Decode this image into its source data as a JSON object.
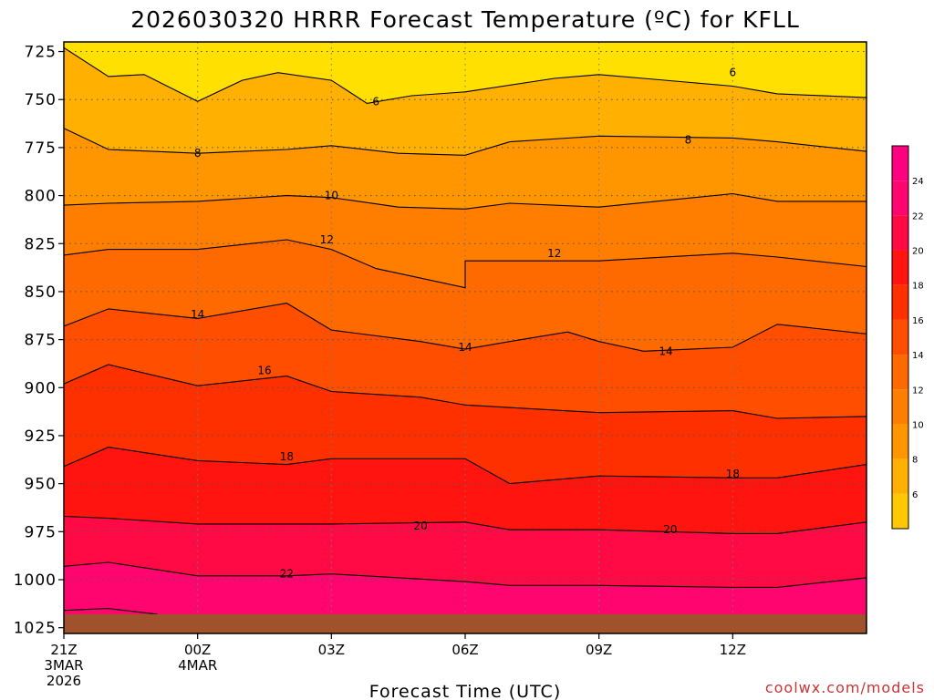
{
  "chart_data": {
    "type": "contour",
    "title": "2026030320 HRRR Forecast Temperature (ºC) for KFLL",
    "xlabel": "Forecast Time (UTC)",
    "ylabel": "",
    "credit": "coolwx.com/models",
    "xlim": [
      0,
      18
    ],
    "ylim": [
      1028,
      720
    ],
    "y_ticks": [
      725,
      750,
      775,
      800,
      825,
      850,
      875,
      900,
      925,
      950,
      975,
      1000,
      1025
    ],
    "x_ticks": [
      {
        "hour": 0,
        "line1": "21Z",
        "line2": "3MAR",
        "line3": "2026"
      },
      {
        "hour": 3,
        "line1": "00Z",
        "line2": "4MAR",
        "line3": ""
      },
      {
        "hour": 6,
        "line1": "03Z",
        "line2": "",
        "line3": ""
      },
      {
        "hour": 9,
        "line1": "06Z",
        "line2": "",
        "line3": ""
      },
      {
        "hour": 12,
        "line1": "09Z",
        "line2": "",
        "line3": ""
      },
      {
        "hour": 15,
        "line1": "12Z",
        "line2": "",
        "line3": ""
      }
    ],
    "surface_pressure_hpa": 1018,
    "fill_levels": [
      4,
      6,
      8,
      10,
      12,
      14,
      16,
      18,
      20,
      22,
      24,
      26
    ],
    "fill_colors": [
      "#ffe000",
      "#ffc800",
      "#ffb000",
      "#ff9600",
      "#ff7e00",
      "#ff6a00",
      "#ff4e00",
      "#ff3000",
      "#ff1410",
      "#ff0a45",
      "#ff0570",
      "#ff0080"
    ],
    "colorbar_labels": [
      "6",
      "8",
      "10",
      "12",
      "14",
      "16",
      "18",
      "20",
      "22",
      "24"
    ],
    "isotherms": [
      {
        "temp": 6,
        "points": [
          [
            0,
            723
          ],
          [
            1,
            738
          ],
          [
            1.8,
            737
          ],
          [
            3,
            751
          ],
          [
            4,
            740
          ],
          [
            4.8,
            736
          ],
          [
            6,
            740
          ],
          [
            6.8,
            752
          ],
          [
            7.8,
            748
          ],
          [
            9,
            746
          ],
          [
            11,
            739
          ],
          [
            12,
            737
          ],
          [
            13,
            739
          ],
          [
            15,
            743
          ],
          [
            16,
            747
          ],
          [
            18,
            749
          ]
        ],
        "labels": [
          [
            7.0,
            751
          ],
          [
            15,
            736
          ]
        ]
      },
      {
        "temp": 6,
        "points": [
          [
            0,
            1016
          ],
          [
            1,
            1015
          ],
          [
            2.1,
            1018
          ]
        ],
        "labels": []
      },
      {
        "temp": 8,
        "points": [
          [
            0,
            765
          ],
          [
            1,
            776
          ],
          [
            3,
            778
          ],
          [
            5,
            776
          ],
          [
            6,
            774
          ],
          [
            7.5,
            778
          ],
          [
            9,
            779
          ],
          [
            10,
            772
          ],
          [
            12,
            769
          ],
          [
            15,
            770
          ],
          [
            16,
            772
          ],
          [
            18,
            777
          ]
        ],
        "labels": [
          [
            3,
            778
          ],
          [
            14,
            771
          ]
        ]
      },
      {
        "temp": 8,
        "points": [],
        "labels": []
      },
      {
        "temp": 10,
        "points": [
          [
            0,
            805
          ],
          [
            1,
            804
          ],
          [
            3,
            803
          ],
          [
            5,
            800
          ],
          [
            6,
            801
          ],
          [
            7.5,
            806
          ],
          [
            9,
            807
          ],
          [
            10,
            804
          ],
          [
            12,
            806
          ],
          [
            15,
            799
          ],
          [
            16,
            803
          ],
          [
            18,
            803
          ]
        ],
        "labels": [
          [
            6,
            800
          ]
        ]
      },
      {
        "temp": 12,
        "points": [
          [
            0,
            831
          ],
          [
            1,
            828
          ],
          [
            3,
            828
          ],
          [
            5,
            823
          ],
          [
            6,
            828
          ],
          [
            7,
            838
          ],
          [
            9,
            848
          ],
          [
            9,
            834
          ],
          [
            12,
            834
          ],
          [
            15,
            830
          ],
          [
            16,
            832
          ],
          [
            18,
            837
          ]
        ],
        "labels": [
          [
            5.9,
            823
          ],
          [
            11,
            830
          ]
        ]
      },
      {
        "temp": 14,
        "points": [
          [
            0,
            868
          ],
          [
            1,
            859
          ],
          [
            3,
            864
          ],
          [
            5,
            856
          ],
          [
            6,
            870
          ],
          [
            8,
            876
          ],
          [
            9,
            880
          ],
          [
            10,
            876
          ],
          [
            11.3,
            871
          ],
          [
            12,
            876
          ],
          [
            13,
            881
          ],
          [
            15,
            879
          ],
          [
            16,
            867
          ],
          [
            18,
            872
          ]
        ],
        "labels": [
          [
            3,
            862
          ],
          [
            9,
            879
          ],
          [
            13.5,
            881
          ]
        ]
      },
      {
        "temp": 16,
        "points": [
          [
            0,
            898
          ],
          [
            1,
            888
          ],
          [
            3,
            899
          ],
          [
            5,
            894
          ],
          [
            6,
            902
          ],
          [
            8,
            905
          ],
          [
            9,
            909
          ],
          [
            12,
            913
          ],
          [
            15,
            912
          ],
          [
            16,
            916
          ],
          [
            18,
            915
          ]
        ],
        "labels": [
          [
            4.5,
            891
          ]
        ]
      },
      {
        "temp": 18,
        "points": [
          [
            0,
            941
          ],
          [
            1,
            931
          ],
          [
            3,
            938
          ],
          [
            5,
            940
          ],
          [
            6,
            937
          ],
          [
            9,
            937
          ],
          [
            10,
            950
          ],
          [
            12,
            946
          ],
          [
            15,
            947
          ],
          [
            16,
            947
          ],
          [
            18,
            940
          ]
        ],
        "labels": [
          [
            5,
            936
          ],
          [
            15,
            945
          ]
        ]
      },
      {
        "temp": 20,
        "points": [
          [
            0,
            967
          ],
          [
            1,
            968
          ],
          [
            3,
            971
          ],
          [
            6,
            971
          ],
          [
            9,
            970
          ],
          [
            10,
            974
          ],
          [
            12,
            974
          ],
          [
            15,
            976
          ],
          [
            16,
            976
          ],
          [
            18,
            970
          ]
        ],
        "labels": [
          [
            8,
            972
          ],
          [
            13.6,
            974
          ]
        ]
      },
      {
        "temp": 22,
        "points": [
          [
            0,
            993
          ],
          [
            1,
            991
          ],
          [
            3,
            998
          ],
          [
            5,
            998
          ],
          [
            6,
            997
          ],
          [
            9,
            1001
          ],
          [
            10,
            1003
          ],
          [
            12,
            1003
          ],
          [
            15,
            1004
          ],
          [
            16,
            1004
          ],
          [
            18,
            999
          ]
        ],
        "labels": [
          [
            5,
            997
          ]
        ]
      }
    ]
  }
}
